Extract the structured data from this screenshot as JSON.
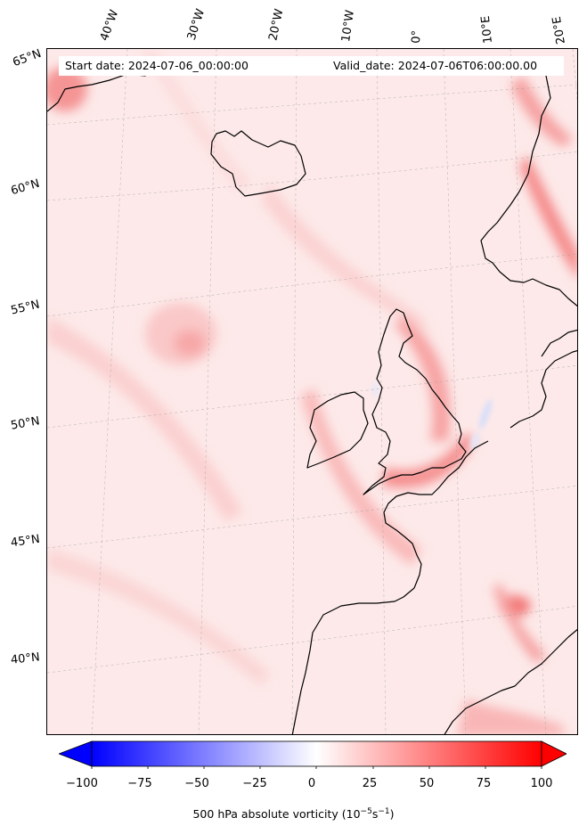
{
  "map": {
    "start_date": "Start date: 2024-07-06_00:00:00",
    "valid_date": "Valid_date: 2024-07-06T06:00:00.00",
    "lon_labels": [
      "40°W",
      "30°W",
      "20°W",
      "10°W",
      "0°",
      "10°E",
      "20°E"
    ],
    "lat_labels": [
      "65°N",
      "60°N",
      "55°N",
      "50°N",
      "45°N",
      "40°N"
    ],
    "colors": {
      "ocean_background": "#fde9e9",
      "vorticity_high": "#f36b6b",
      "vorticity_mid": "#fbbdbd",
      "vorticity_low_negative": "#d6defa",
      "coastline": "#000000",
      "graticule": "#9a9a9a"
    }
  },
  "colorbar": {
    "tick_labels": [
      "−100",
      "−75",
      "−50",
      "−25",
      "0",
      "25",
      "50",
      "75",
      "100"
    ],
    "label_main": "500 hPa absolute vorticity (10",
    "label_exp1": "−5",
    "label_mid": "s",
    "label_exp2": "−1",
    "label_end": ")",
    "range": [
      -100,
      100
    ],
    "colors": {
      "min": "#0000ff",
      "center": "#ffffff",
      "max": "#ff0000"
    }
  }
}
